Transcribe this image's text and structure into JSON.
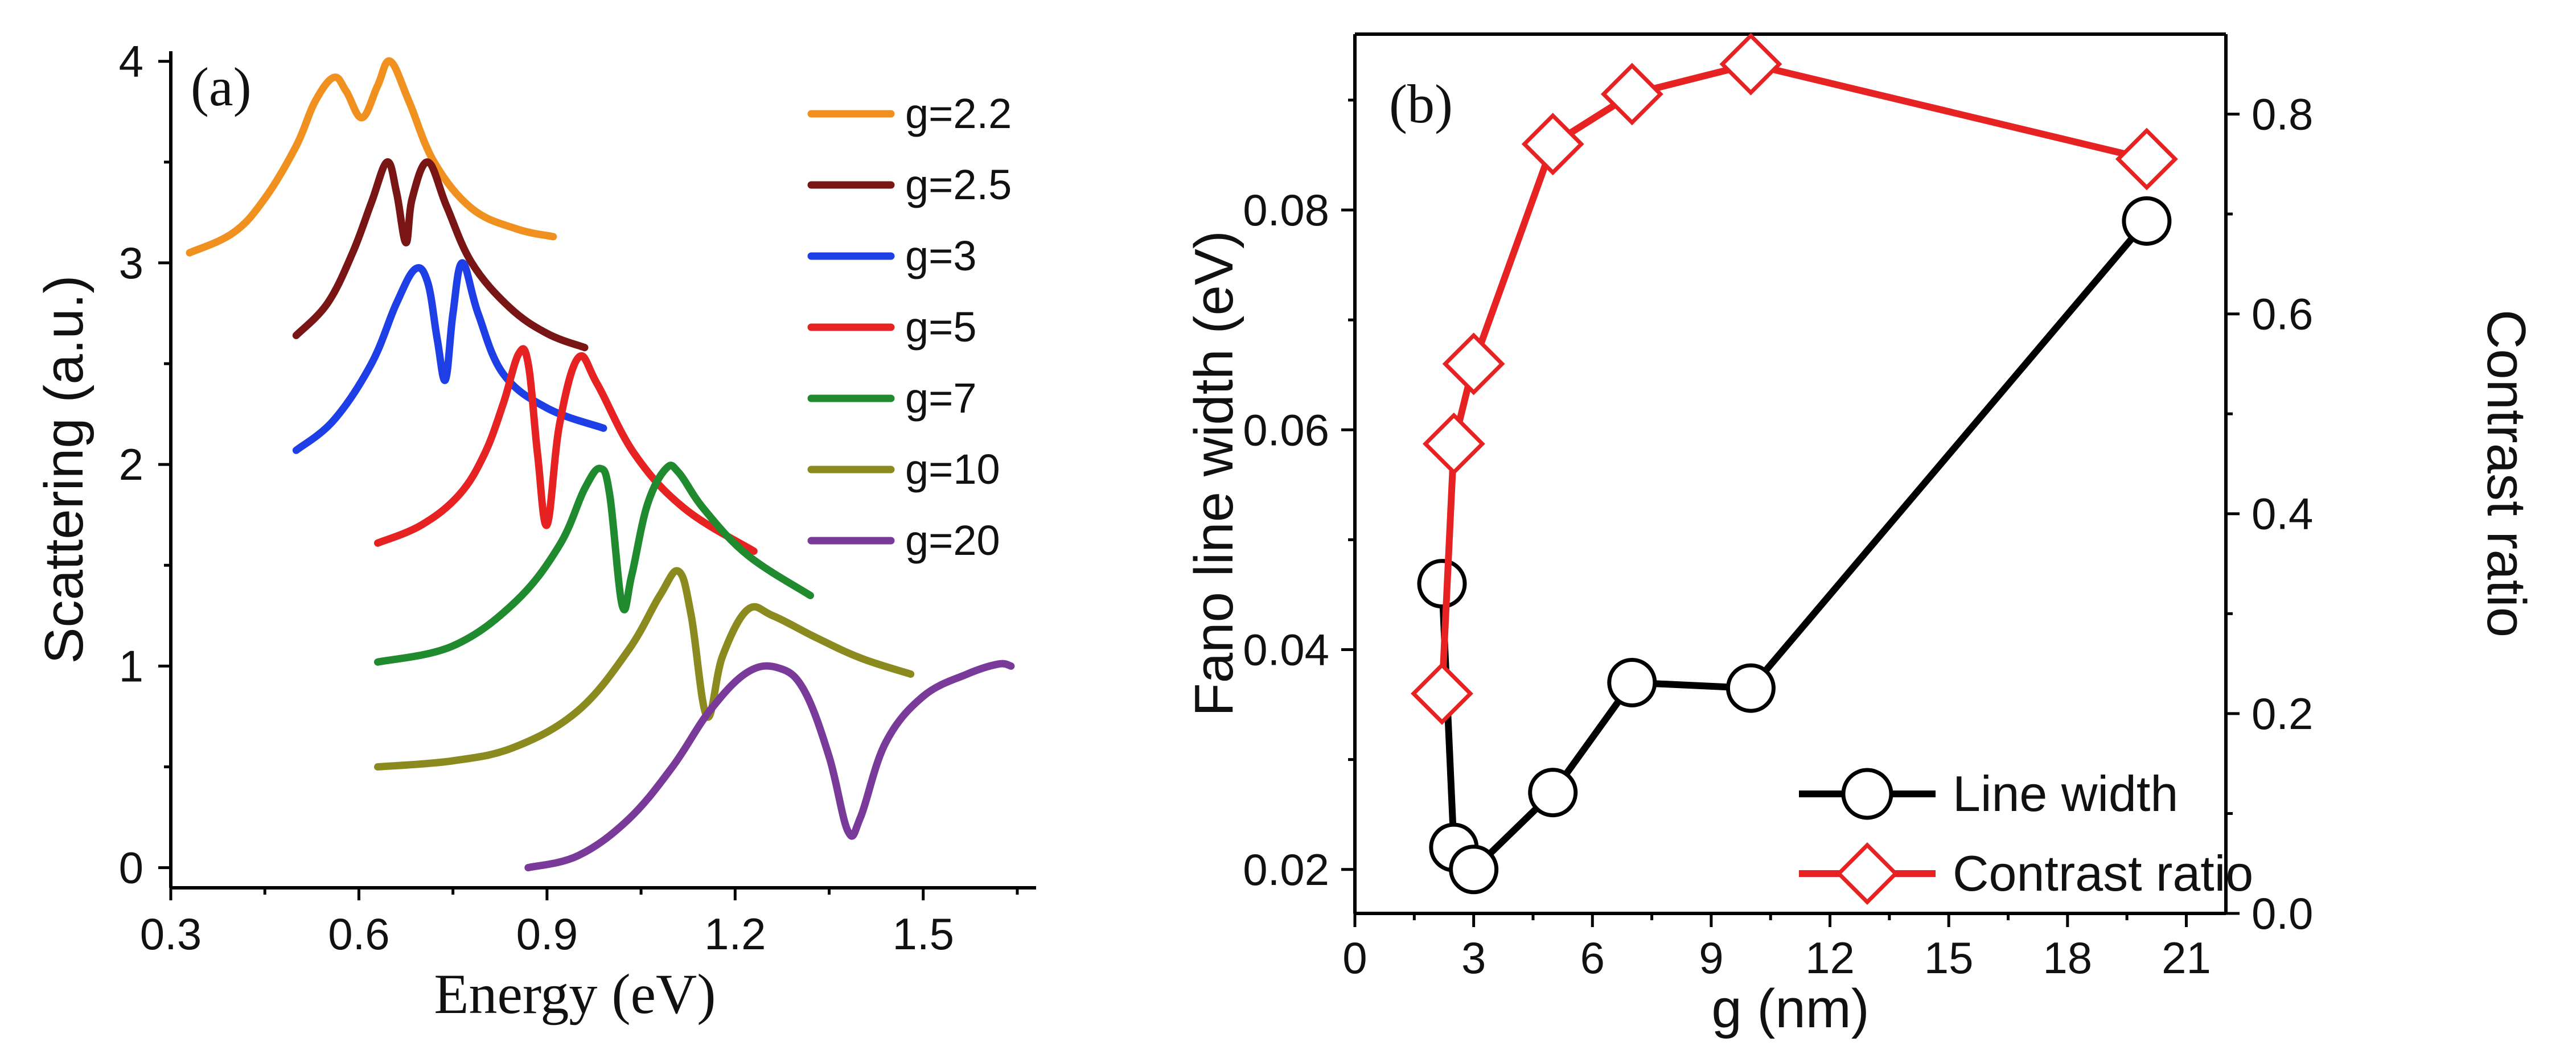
{
  "chart_data": [
    {
      "type": "line",
      "panel_label": "(a)",
      "xlabel": "Energy (eV)",
      "ylabel": "Scattering (a.u.)",
      "xlim": [
        0.3,
        1.68
      ],
      "ylim": [
        -0.1,
        4.05
      ],
      "xticks": [
        "0.3",
        "0.6",
        "0.9",
        "1.2",
        "1.5"
      ],
      "yticks": [
        "0",
        "1",
        "2",
        "3",
        "4"
      ],
      "legend_position": "top-right",
      "series": [
        {
          "name": "g=2.2",
          "color": "#f0901e",
          "x": [
            0.33,
            0.4,
            0.45,
            0.5,
            0.53,
            0.56,
            0.58,
            0.605,
            0.63,
            0.65,
            0.68,
            0.72,
            0.78,
            0.85,
            0.91
          ],
          "y": [
            3.05,
            3.15,
            3.32,
            3.58,
            3.8,
            3.92,
            3.85,
            3.72,
            3.88,
            4.0,
            3.8,
            3.5,
            3.27,
            3.17,
            3.13
          ]
        },
        {
          "name": "g=2.5",
          "color": "#7a1515",
          "x": [
            0.5,
            0.55,
            0.59,
            0.62,
            0.645,
            0.66,
            0.675,
            0.685,
            0.71,
            0.74,
            0.78,
            0.84,
            0.9,
            0.96
          ],
          "y": [
            2.64,
            2.8,
            3.05,
            3.3,
            3.5,
            3.35,
            3.1,
            3.32,
            3.5,
            3.28,
            3.0,
            2.78,
            2.65,
            2.58
          ]
        },
        {
          "name": "g=3",
          "color": "#1f3fe6",
          "x": [
            0.5,
            0.56,
            0.62,
            0.66,
            0.69,
            0.71,
            0.725,
            0.738,
            0.75,
            0.765,
            0.79,
            0.83,
            0.9,
            0.99
          ],
          "y": [
            2.07,
            2.22,
            2.5,
            2.8,
            2.97,
            2.9,
            2.62,
            2.42,
            2.75,
            3.0,
            2.75,
            2.45,
            2.28,
            2.18
          ]
        },
        {
          "name": "g=5",
          "color": "#e62222",
          "x": [
            0.63,
            0.7,
            0.76,
            0.8,
            0.83,
            0.855,
            0.87,
            0.885,
            0.9,
            0.92,
            0.95,
            0.98,
            1.04,
            1.12,
            1.23
          ],
          "y": [
            1.61,
            1.7,
            1.85,
            2.05,
            2.3,
            2.55,
            2.5,
            2.05,
            1.7,
            2.2,
            2.53,
            2.4,
            2.05,
            1.78,
            1.57
          ]
        },
        {
          "name": "g=7",
          "color": "#1f8a2e",
          "x": [
            0.63,
            0.75,
            0.85,
            0.92,
            0.96,
            0.985,
            1.0,
            1.02,
            1.035,
            1.06,
            1.09,
            1.11,
            1.15,
            1.22,
            1.32
          ],
          "y": [
            1.02,
            1.1,
            1.32,
            1.6,
            1.88,
            1.98,
            1.85,
            1.3,
            1.45,
            1.8,
            1.98,
            1.96,
            1.78,
            1.55,
            1.35
          ]
        },
        {
          "name": "g=10",
          "color": "#8a8a1f",
          "x": [
            0.63,
            0.75,
            0.85,
            0.95,
            1.03,
            1.08,
            1.11,
            1.13,
            1.155,
            1.18,
            1.22,
            1.26,
            1.33,
            1.4,
            1.48
          ],
          "y": [
            0.5,
            0.53,
            0.6,
            0.78,
            1.08,
            1.35,
            1.47,
            1.25,
            0.75,
            1.05,
            1.28,
            1.25,
            1.14,
            1.04,
            0.96
          ]
        },
        {
          "name": "g=20",
          "color": "#7a3a9a",
          "x": [
            0.87,
            0.95,
            1.03,
            1.1,
            1.16,
            1.22,
            1.27,
            1.31,
            1.35,
            1.38,
            1.4,
            1.44,
            1.5,
            1.57,
            1.62,
            1.64
          ],
          "y": [
            0.0,
            0.06,
            0.24,
            0.5,
            0.78,
            0.97,
            0.99,
            0.88,
            0.55,
            0.18,
            0.25,
            0.62,
            0.85,
            0.96,
            1.01,
            1.0
          ]
        }
      ]
    },
    {
      "type": "line",
      "panel_label": "(b)",
      "xlabel": "g (nm)",
      "ylabel": "Fano line width (eV)",
      "y2label": "Contrast ratio",
      "xlim": [
        0,
        22
      ],
      "ylim": [
        0.016,
        0.096
      ],
      "y2lim": [
        0.0,
        0.88
      ],
      "xticks": [
        "0",
        "3",
        "6",
        "9",
        "12",
        "15",
        "18",
        "21"
      ],
      "yticks": [
        "0.02",
        "0.04",
        "0.06",
        "0.08"
      ],
      "y2ticks": [
        "0.0",
        "0.2",
        "0.4",
        "0.6",
        "0.8"
      ],
      "legend_position": "bottom-right",
      "series": [
        {
          "name": "Line width",
          "color": "#000000",
          "marker": "circle",
          "axis": "left",
          "x": [
            2.2,
            2.5,
            3,
            5,
            7,
            10,
            20
          ],
          "y": [
            0.046,
            0.022,
            0.02,
            0.027,
            0.037,
            0.0365,
            0.079
          ]
        },
        {
          "name": "Contrast ratio",
          "color": "#e62222",
          "marker": "diamond",
          "axis": "right",
          "x": [
            2.2,
            2.5,
            3,
            5,
            7,
            10,
            20
          ],
          "y": [
            0.22,
            0.47,
            0.55,
            0.77,
            0.82,
            0.85,
            0.755
          ]
        }
      ]
    }
  ]
}
